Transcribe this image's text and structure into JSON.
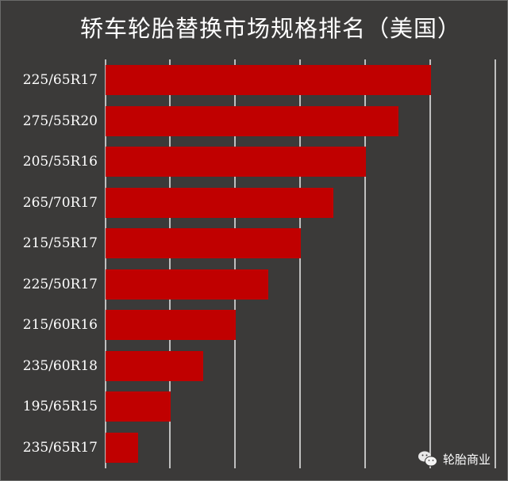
{
  "title": "轿车轮胎替换市场规格排名（美国）",
  "watermark": {
    "icon": "wechat-icon",
    "text": "轮胎商业"
  },
  "colors": {
    "background": "#3b3a39",
    "bar": "#c00000",
    "grid": "#bfbfbf",
    "text": "#ffffff"
  },
  "chart_data": {
    "type": "bar",
    "orientation": "horizontal",
    "title": "轿车轮胎替换市场规格排名（美国）",
    "xlabel": "",
    "ylabel": "",
    "categories": [
      "225/65R17",
      "275/55R20",
      "205/55R16",
      "265/70R17",
      "215/55R17",
      "225/50R17",
      "215/60R16",
      "235/60R18",
      "195/65R15",
      "235/65R17"
    ],
    "values": [
      10,
      9,
      8,
      7,
      6,
      5,
      4,
      3,
      2,
      1
    ],
    "value_note": "relative ranking lengths; no axis tick labels shown (each bar = half a gridline interval shorter)",
    "xlim": [
      0,
      12
    ],
    "gridlines": 7,
    "grid": true,
    "legend": "none"
  }
}
